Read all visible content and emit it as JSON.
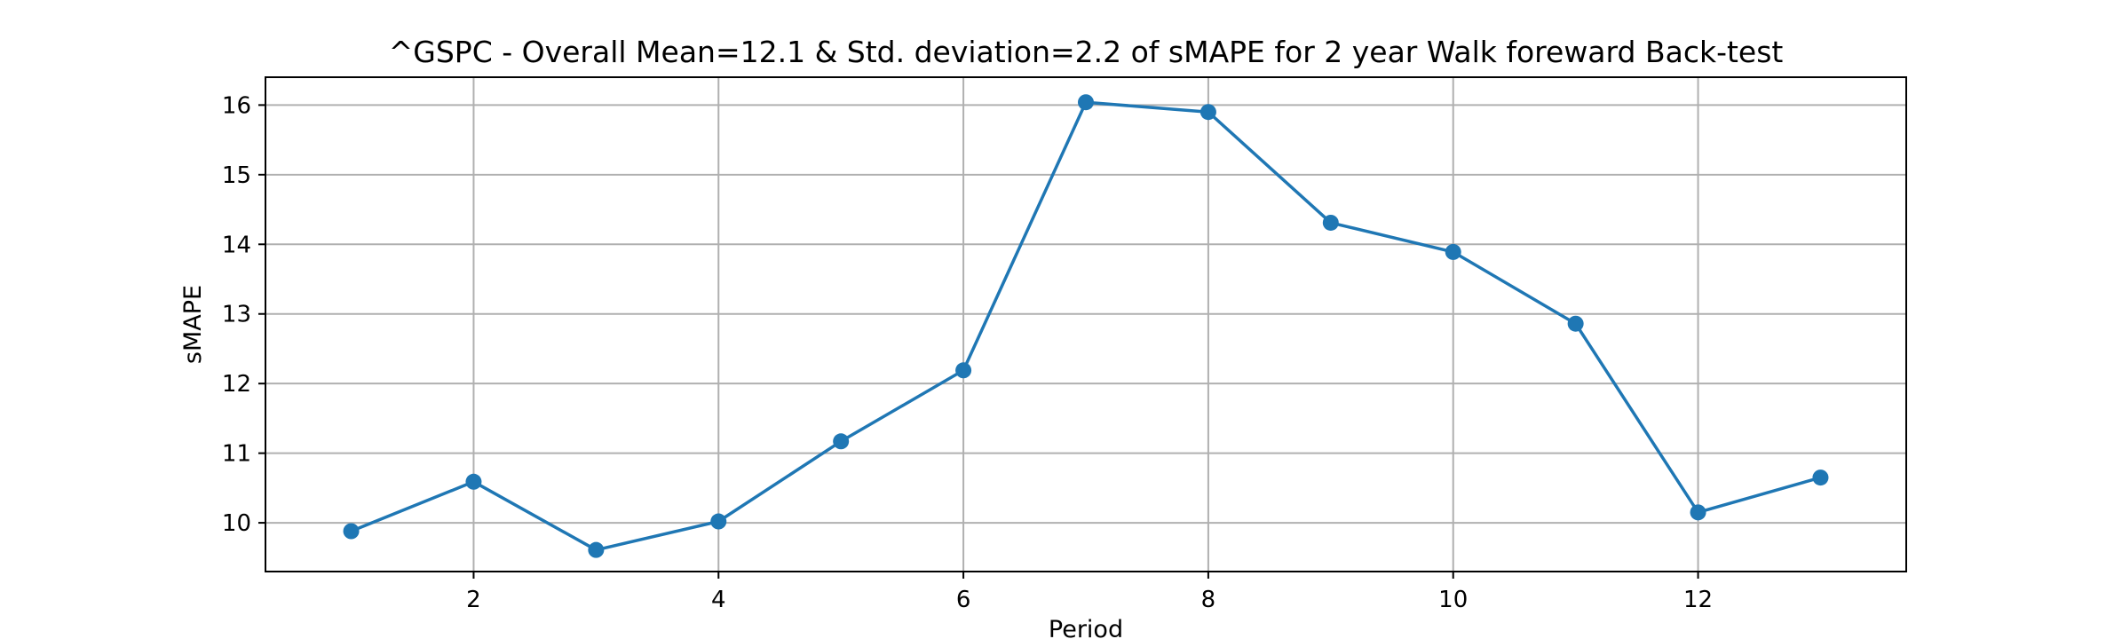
{
  "chart_data": {
    "type": "line",
    "title": "^GSPC - Overall Mean=12.1 & Std. deviation=2.2 of sMAPE for 2 year Walk foreward Back-test",
    "xlabel": "Period",
    "ylabel": "sMAPE",
    "x": [
      1,
      2,
      3,
      4,
      5,
      6,
      7,
      8,
      9,
      10,
      11,
      12,
      13
    ],
    "series": [
      {
        "values": [
          9.88,
          10.59,
          9.61,
          10.02,
          11.17,
          12.19,
          16.04,
          15.9,
          14.31,
          13.89,
          12.86,
          10.15,
          10.65
        ],
        "color": "#1f77b4",
        "marker": "circle"
      }
    ],
    "xlim": [
      0.3,
      13.7
    ],
    "ylim": [
      9.3,
      16.4
    ],
    "xticks": [
      2,
      4,
      6,
      8,
      10,
      12
    ],
    "yticks": [
      10,
      11,
      12,
      13,
      14,
      15,
      16
    ],
    "grid": true,
    "legend": "none"
  }
}
